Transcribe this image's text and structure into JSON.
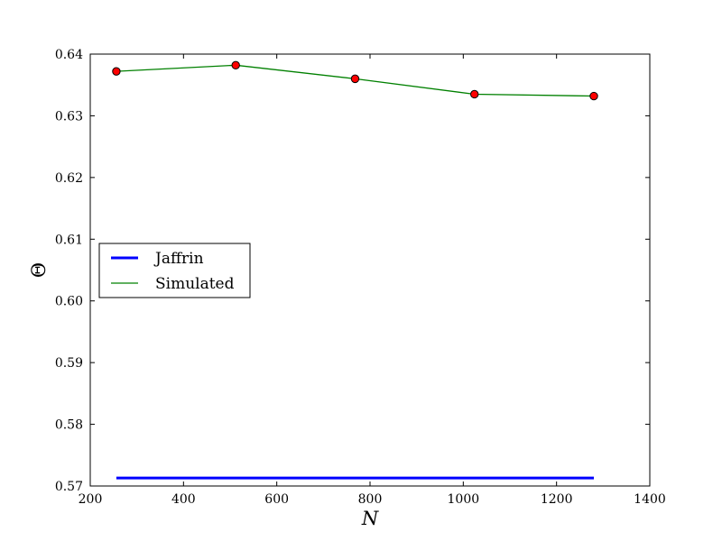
{
  "chart_data": {
    "type": "line",
    "title": "",
    "xlabel": "N",
    "ylabel": "Θ",
    "xlim": [
      200,
      1400
    ],
    "ylim": [
      0.57,
      0.64
    ],
    "xticks": [
      200,
      400,
      600,
      800,
      1000,
      1200,
      1400
    ],
    "yticks": [
      0.57,
      0.58,
      0.59,
      0.6,
      0.61,
      0.62,
      0.63,
      0.64
    ],
    "xtick_labels": [
      "200",
      "400",
      "600",
      "800",
      "1000",
      "1200",
      "1400"
    ],
    "ytick_labels": [
      "0.57",
      "0.58",
      "0.59",
      "0.60",
      "0.61",
      "0.62",
      "0.63",
      "0.64"
    ],
    "grid": false,
    "legend_position": "center-left",
    "series": [
      {
        "name": "Jaffrin",
        "color": "#0000ff",
        "marker": "none",
        "x": [
          256,
          1280
        ],
        "y": [
          0.5713,
          0.5713
        ]
      },
      {
        "name": "Simulated",
        "color": "#008000",
        "marker": "circle",
        "marker_color": "#ff0000",
        "x": [
          256,
          512,
          768,
          1024,
          1280
        ],
        "y": [
          0.6372,
          0.6382,
          0.636,
          0.6335,
          0.6332
        ]
      }
    ]
  }
}
